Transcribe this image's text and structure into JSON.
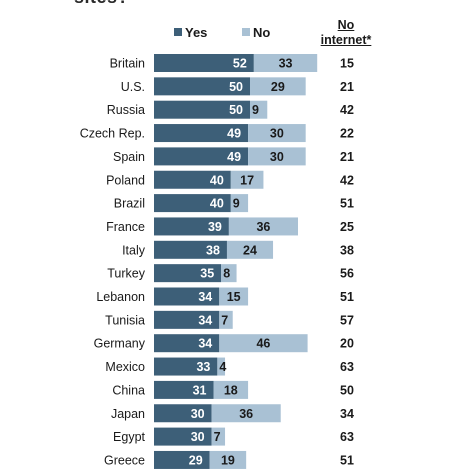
{
  "title_fragment": "sites?",
  "legend": {
    "yes_label": "Yes",
    "no_label": "No",
    "no_internet_line1": "No",
    "no_internet_line2": "internet*"
  },
  "colors": {
    "yes": "#3d5f78",
    "no": "#a9c1d4",
    "yes_text": "#ffffff",
    "no_text": "#1a1a1a"
  },
  "chart_data": {
    "type": "bar",
    "orientation": "horizontal",
    "stacked": true,
    "xlim": [
      0,
      100
    ],
    "categories": [
      "Britain",
      "U.S.",
      "Russia",
      "Czech Rep.",
      "Spain",
      "Poland",
      "Brazil",
      "France",
      "Italy",
      "Turkey",
      "Lebanon",
      "Tunisia",
      "Germany",
      "Mexico",
      "China",
      "Japan",
      "Egypt",
      "Greece"
    ],
    "series": [
      {
        "name": "Yes",
        "values": [
          52,
          50,
          50,
          49,
          49,
          40,
          40,
          39,
          38,
          35,
          34,
          34,
          34,
          33,
          31,
          30,
          30,
          29
        ]
      },
      {
        "name": "No",
        "values": [
          33,
          29,
          9,
          30,
          30,
          17,
          9,
          36,
          24,
          8,
          15,
          7,
          46,
          4,
          18,
          36,
          7,
          19
        ]
      },
      {
        "name": "No internet*",
        "values": [
          15,
          21,
          42,
          22,
          21,
          42,
          51,
          25,
          38,
          56,
          51,
          57,
          20,
          63,
          50,
          34,
          63,
          51
        ]
      }
    ],
    "grid": false,
    "legend_position": "top"
  }
}
